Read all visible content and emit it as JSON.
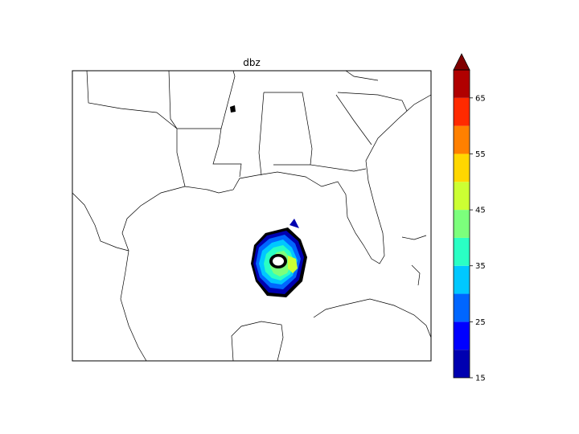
{
  "title": "dbz",
  "colorbar": {
    "levels": [
      15,
      20,
      25,
      30,
      35,
      40,
      45,
      50,
      55,
      60,
      65,
      70
    ],
    "tick_labels": [
      "15",
      "25",
      "35",
      "45",
      "55",
      "65"
    ],
    "tick_values": [
      15,
      25,
      35,
      45,
      55,
      65
    ],
    "colors": [
      "#0000b0",
      "#0000ff",
      "#0066ff",
      "#00c8ff",
      "#2affc4",
      "#7cff7c",
      "#ccff33",
      "#ffd700",
      "#ff8000",
      "#ff2a00",
      "#b00000"
    ],
    "extend_color": "#800000",
    "extend": "max"
  },
  "map": {
    "region": "Gulf of Mexico",
    "feature": "storm reflectivity contours"
  }
}
